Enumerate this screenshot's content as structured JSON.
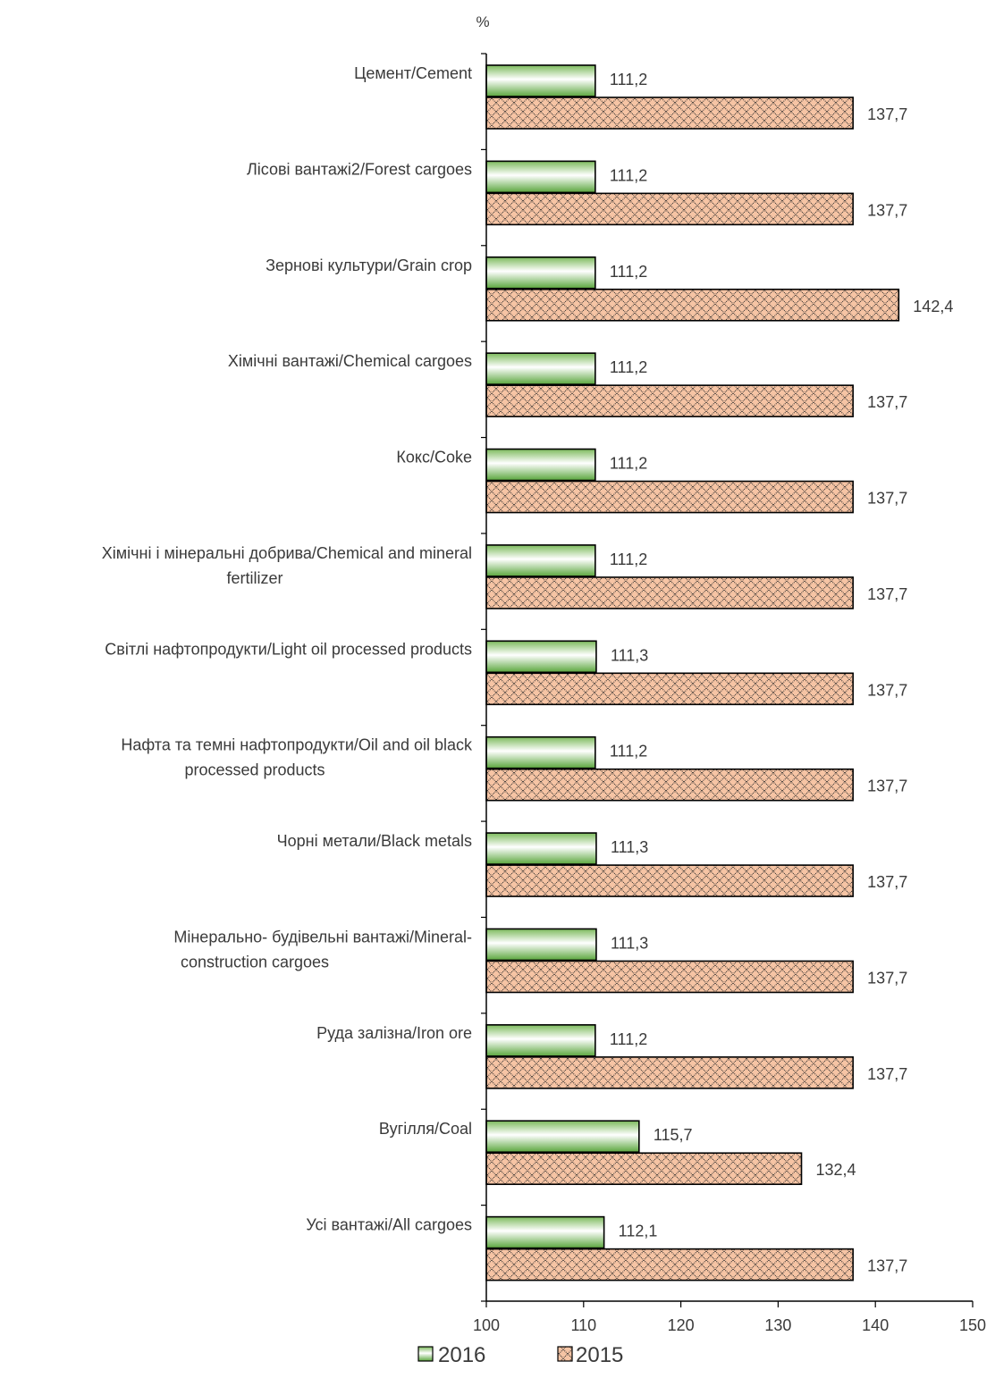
{
  "chart_data": {
    "type": "bar",
    "orientation": "horizontal",
    "unit_label": "%",
    "categories": [
      [
        "Цемент/Cement"
      ],
      [
        "Лісові вантажі2/Forest cargoes"
      ],
      [
        "Зернові культури/Grain crop"
      ],
      [
        "Хімічні вантажі/Chemical cargoes"
      ],
      [
        "Кокс/Coke"
      ],
      [
        "Хімічні і мінеральні  добрива/Chemical and mineral",
        "fertilizer"
      ],
      [
        "Світлі нафтопродукти/Light oil processed products"
      ],
      [
        "Нафта та темні нафтопродукти/Oil and oil black",
        "processed products"
      ],
      [
        "Чорні метали/Black metals"
      ],
      [
        "Мінерально- будівельні вантажі/Mineral-",
        "construction cargoes"
      ],
      [
        "Руда залізна/Iron ore"
      ],
      [
        "Вугілля/Coal"
      ],
      [
        "Усі вантажі/All cargoes"
      ]
    ],
    "series": [
      {
        "name": "2016",
        "color": "#5aa63c",
        "values": [
          111.2,
          111.2,
          111.2,
          111.2,
          111.2,
          111.2,
          111.3,
          111.2,
          111.3,
          111.3,
          111.2,
          115.7,
          112.1
        ],
        "labels": [
          "111,2",
          "111,2",
          "111,2",
          "111,2",
          "111,2",
          "111,2",
          "111,3",
          "111,2",
          "111,3",
          "111,3",
          "111,2",
          "115,7",
          "112,1"
        ]
      },
      {
        "name": "2015",
        "color": "#f6c4a4",
        "pattern": "crosshatch",
        "values": [
          137.7,
          137.7,
          142.4,
          137.7,
          137.7,
          137.7,
          137.7,
          137.7,
          137.7,
          137.7,
          137.7,
          132.4,
          137.7
        ],
        "labels": [
          "137,7",
          "137,7",
          "142,4",
          "137,7",
          "137,7",
          "137,7",
          "137,7",
          "137,7",
          "137,7",
          "137,7",
          "137,7",
          "132,4",
          "137,7"
        ]
      }
    ],
    "xlim": [
      100,
      150
    ],
    "xticks": [
      100,
      110,
      120,
      130,
      140,
      150
    ],
    "xtick_labels": [
      "100",
      "110",
      "120",
      "130",
      "140",
      "150"
    ],
    "legend": {
      "position": "bottom",
      "items": [
        "2016",
        "2015"
      ]
    },
    "grid": false
  }
}
